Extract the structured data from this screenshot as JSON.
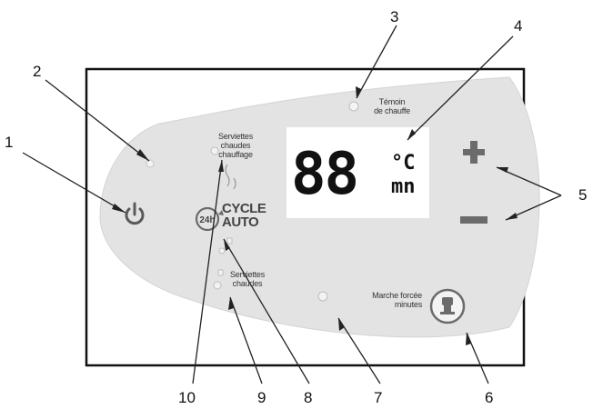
{
  "callouts": [
    {
      "number": "1",
      "meaning": "power"
    },
    {
      "number": "2",
      "meaning": "power-indicator"
    },
    {
      "number": "3",
      "meaning": "heating-indicator"
    },
    {
      "number": "4",
      "meaning": "display"
    },
    {
      "number": "5",
      "meaning": "plus-minus"
    },
    {
      "number": "6",
      "meaning": "forced-run-button"
    },
    {
      "number": "7",
      "meaning": "forced-run-indicator"
    },
    {
      "number": "8",
      "meaning": "cycle-auto"
    },
    {
      "number": "9",
      "meaning": "towels-dry"
    },
    {
      "number": "10",
      "meaning": "towels-heating"
    }
  ],
  "panel": {
    "heating_indicator": {
      "line1": "Témoin",
      "line2": "de chauffe"
    },
    "display": {
      "digits": "88",
      "unit_top": "°C",
      "unit_bottom": "mn"
    },
    "cycle": {
      "badge": "24h",
      "line1": "CYCLE",
      "line2": "AUTO"
    },
    "towels_heating": {
      "line1": "Serviettes",
      "line2": "chaudes",
      "line3": "chauffage"
    },
    "towels_dry": {
      "line1": "Serviettes",
      "line2": "chaudes"
    },
    "forced_run": {
      "line1": "Marche forcée",
      "line2": "minutes"
    }
  },
  "colors": {
    "frame": "#111111",
    "panel": "#e3e3e3",
    "symbol": "#6b6b6b",
    "leader": "#222222"
  }
}
